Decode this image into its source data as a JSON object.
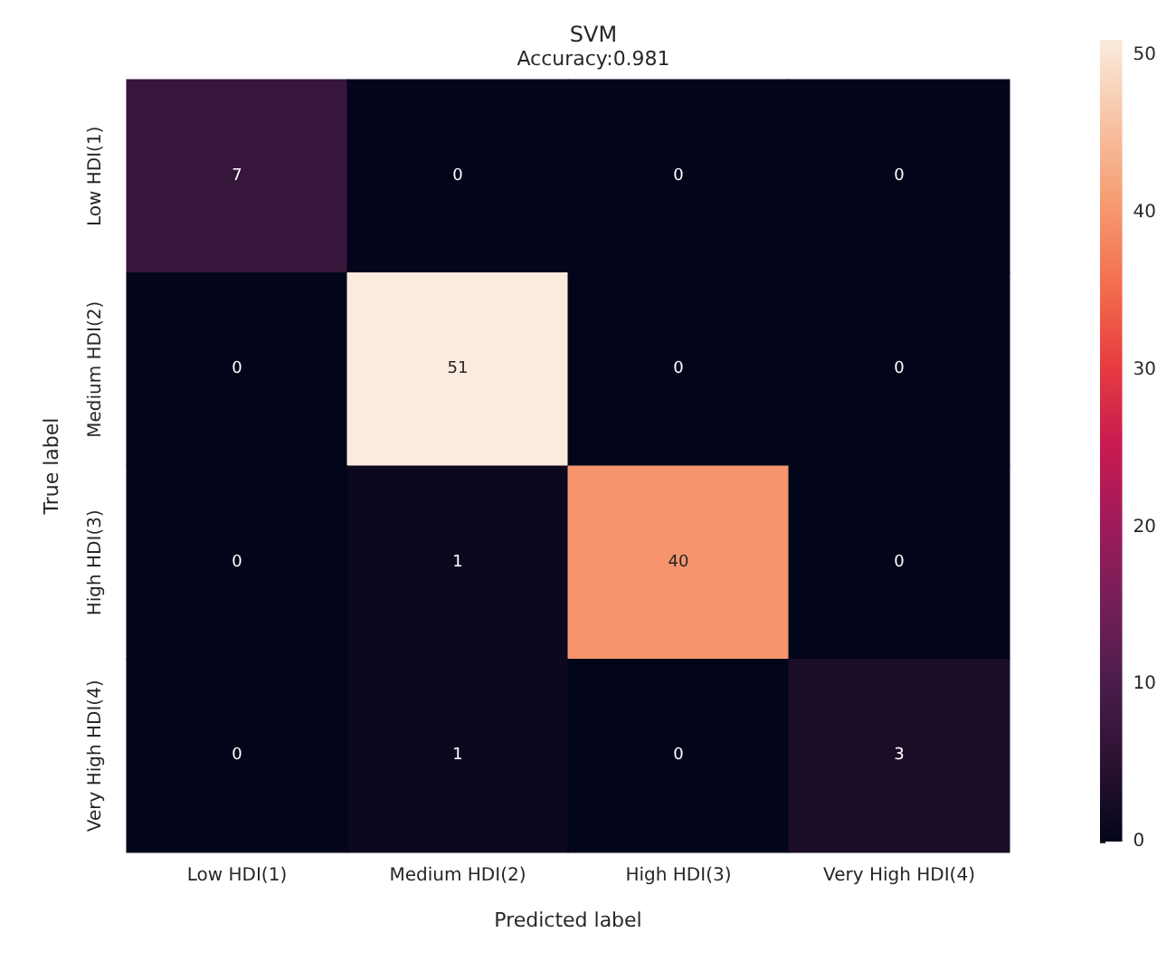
{
  "chart_data": {
    "type": "heatmap",
    "title": "SVM",
    "subtitle": "Accuracy:0.981",
    "xlabel": "Predicted label",
    "ylabel": "True label",
    "categories": [
      "Low HDI(1)",
      "Medium HDI(2)",
      "High HDI(3)",
      "Very High HDI(4)"
    ],
    "y_categories": [
      "Low HDI(1)",
      "Medium HDI(2)",
      "High HDI(3)",
      "Very High HDI(4)"
    ],
    "cells": [
      [
        7,
        0,
        0,
        0
      ],
      [
        0,
        51,
        0,
        0
      ],
      [
        0,
        1,
        40,
        0
      ],
      [
        0,
        1,
        0,
        3
      ]
    ],
    "data_labels": true,
    "clim": [
      0,
      51
    ],
    "cticks": [
      0,
      10,
      20,
      30,
      40,
      50
    ]
  }
}
